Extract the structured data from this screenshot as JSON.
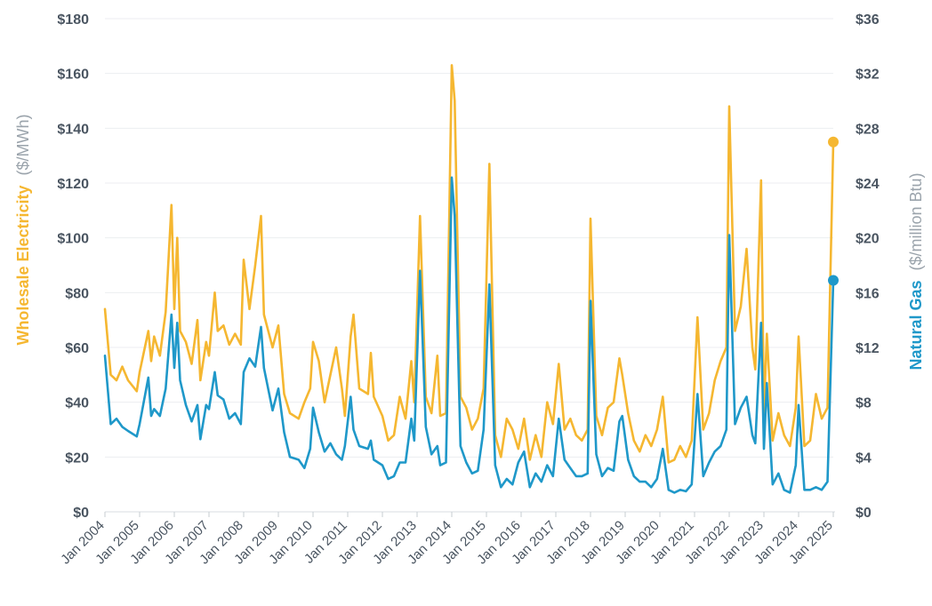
{
  "chart_data": {
    "type": "line",
    "title": "",
    "y_left": {
      "label_main": "Wholesale Electricity",
      "label_unit": "($/MWh)",
      "ylim": [
        0,
        180
      ],
      "ticks": [
        0,
        20,
        40,
        60,
        80,
        100,
        120,
        140,
        160,
        180
      ],
      "tick_labels": [
        "$0",
        "$20",
        "$40",
        "$60",
        "$80",
        "$100",
        "$120",
        "$140",
        "$160",
        "$180"
      ]
    },
    "y_right": {
      "label_main": "Natural Gas",
      "label_unit": "($/million Btu)",
      "ylim": [
        0,
        36
      ],
      "ticks": [
        0,
        4,
        8,
        12,
        16,
        20,
        24,
        28,
        32,
        36
      ],
      "tick_labels": [
        "$0",
        "$4",
        "$8",
        "$12",
        "$16",
        "$20",
        "$24",
        "$28",
        "$32",
        "$36"
      ]
    },
    "x_axis": {
      "tick_labels": [
        "Jan 2004",
        "Jan 2005",
        "Jan 2006",
        "Jan 2007",
        "Jan 2008",
        "Jan 2009",
        "Jan 2010",
        "Jan 2011",
        "Jan 2012",
        "Jan 2013",
        "Jan 2014",
        "Jan 2015",
        "Jan 2016",
        "Jan 2017",
        "Jan 2018",
        "Jan 2019",
        "Jan 2020",
        "Jan 2021",
        "Jan 2022",
        "Jan 2023",
        "Jan 2024",
        "Jan 2025"
      ]
    },
    "grid": true,
    "series": [
      {
        "axis": "left",
        "color": "#f5b731",
        "points": [
          [
            "2004-01",
            74
          ],
          [
            "2004-03",
            50
          ],
          [
            "2004-05",
            48
          ],
          [
            "2004-07",
            53
          ],
          [
            "2004-09",
            48
          ],
          [
            "2004-12",
            44
          ],
          [
            "2005-01",
            51
          ],
          [
            "2005-04",
            66
          ],
          [
            "2005-05",
            55
          ],
          [
            "2005-06",
            64
          ],
          [
            "2005-08",
            57
          ],
          [
            "2005-10",
            73
          ],
          [
            "2005-12",
            112
          ],
          [
            "2006-01",
            74
          ],
          [
            "2006-02",
            100
          ],
          [
            "2006-03",
            66
          ],
          [
            "2006-05",
            62
          ],
          [
            "2006-07",
            54
          ],
          [
            "2006-09",
            70
          ],
          [
            "2006-10",
            48
          ],
          [
            "2006-12",
            62
          ],
          [
            "2007-01",
            57
          ],
          [
            "2007-03",
            80
          ],
          [
            "2007-04",
            66
          ],
          [
            "2007-06",
            68
          ],
          [
            "2007-08",
            61
          ],
          [
            "2007-10",
            65
          ],
          [
            "2007-12",
            61
          ],
          [
            "2008-01",
            92
          ],
          [
            "2008-03",
            74
          ],
          [
            "2008-05",
            90
          ],
          [
            "2008-07",
            108
          ],
          [
            "2008-08",
            72
          ],
          [
            "2008-11",
            60
          ],
          [
            "2009-01",
            68
          ],
          [
            "2009-03",
            43
          ],
          [
            "2009-05",
            36
          ],
          [
            "2009-08",
            34
          ],
          [
            "2009-10",
            40
          ],
          [
            "2009-12",
            45
          ],
          [
            "2010-01",
            62
          ],
          [
            "2010-03",
            55
          ],
          [
            "2010-05",
            40
          ],
          [
            "2010-07",
            50
          ],
          [
            "2010-09",
            60
          ],
          [
            "2010-11",
            45
          ],
          [
            "2010-12",
            35
          ],
          [
            "2011-02",
            64
          ],
          [
            "2011-03",
            72
          ],
          [
            "2011-05",
            45
          ],
          [
            "2011-08",
            43
          ],
          [
            "2011-09",
            58
          ],
          [
            "2011-10",
            42
          ],
          [
            "2012-01",
            35
          ],
          [
            "2012-03",
            26
          ],
          [
            "2012-05",
            28
          ],
          [
            "2012-07",
            42
          ],
          [
            "2012-09",
            34
          ],
          [
            "2012-11",
            55
          ],
          [
            "2012-12",
            40
          ],
          [
            "2013-02",
            108
          ],
          [
            "2013-04",
            42
          ],
          [
            "2013-06",
            36
          ],
          [
            "2013-08",
            57
          ],
          [
            "2013-09",
            35
          ],
          [
            "2013-11",
            36
          ],
          [
            "2014-01",
            163
          ],
          [
            "2014-02",
            150
          ],
          [
            "2014-04",
            42
          ],
          [
            "2014-06",
            38
          ],
          [
            "2014-08",
            30
          ],
          [
            "2014-10",
            34
          ],
          [
            "2014-12",
            45
          ],
          [
            "2015-02",
            127
          ],
          [
            "2015-04",
            28
          ],
          [
            "2015-06",
            20
          ],
          [
            "2015-08",
            34
          ],
          [
            "2015-10",
            30
          ],
          [
            "2015-12",
            23
          ],
          [
            "2016-02",
            34
          ],
          [
            "2016-04",
            19
          ],
          [
            "2016-06",
            28
          ],
          [
            "2016-08",
            20
          ],
          [
            "2016-10",
            40
          ],
          [
            "2016-12",
            32
          ],
          [
            "2017-02",
            54
          ],
          [
            "2017-04",
            30
          ],
          [
            "2017-06",
            34
          ],
          [
            "2017-08",
            28
          ],
          [
            "2017-10",
            26
          ],
          [
            "2017-12",
            30
          ],
          [
            "2018-01",
            107
          ],
          [
            "2018-03",
            35
          ],
          [
            "2018-05",
            28
          ],
          [
            "2018-07",
            38
          ],
          [
            "2018-09",
            40
          ],
          [
            "2018-11",
            56
          ],
          [
            "2018-12",
            50
          ],
          [
            "2019-02",
            36
          ],
          [
            "2019-04",
            26
          ],
          [
            "2019-06",
            22
          ],
          [
            "2019-08",
            28
          ],
          [
            "2019-10",
            24
          ],
          [
            "2019-12",
            30
          ],
          [
            "2020-02",
            42
          ],
          [
            "2020-04",
            18
          ],
          [
            "2020-06",
            19
          ],
          [
            "2020-08",
            24
          ],
          [
            "2020-10",
            20
          ],
          [
            "2020-12",
            26
          ],
          [
            "2021-02",
            71
          ],
          [
            "2021-04",
            30
          ],
          [
            "2021-06",
            36
          ],
          [
            "2021-08",
            48
          ],
          [
            "2021-10",
            55
          ],
          [
            "2021-12",
            60
          ],
          [
            "2022-01",
            148
          ],
          [
            "2022-03",
            66
          ],
          [
            "2022-05",
            75
          ],
          [
            "2022-07",
            96
          ],
          [
            "2022-09",
            60
          ],
          [
            "2022-10",
            52
          ],
          [
            "2022-12",
            121
          ],
          [
            "2023-01",
            36
          ],
          [
            "2023-02",
            65
          ],
          [
            "2023-04",
            26
          ],
          [
            "2023-06",
            36
          ],
          [
            "2023-08",
            28
          ],
          [
            "2023-10",
            24
          ],
          [
            "2023-12",
            38
          ],
          [
            "2024-01",
            64
          ],
          [
            "2024-03",
            24
          ],
          [
            "2024-05",
            26
          ],
          [
            "2024-07",
            43
          ],
          [
            "2024-09",
            34
          ],
          [
            "2024-11",
            38
          ],
          [
            "2025-01",
            135
          ]
        ]
      },
      {
        "axis": "right",
        "color": "#1f98c9",
        "points": [
          [
            "2004-01",
            11.4
          ],
          [
            "2004-03",
            6.4
          ],
          [
            "2004-05",
            6.8
          ],
          [
            "2004-07",
            6.2
          ],
          [
            "2004-09",
            5.9
          ],
          [
            "2004-12",
            5.5
          ],
          [
            "2005-01",
            6.4
          ],
          [
            "2005-04",
            9.8
          ],
          [
            "2005-05",
            7.0
          ],
          [
            "2005-06",
            7.5
          ],
          [
            "2005-08",
            7.0
          ],
          [
            "2005-10",
            9.0
          ],
          [
            "2005-12",
            14.4
          ],
          [
            "2006-01",
            10.5
          ],
          [
            "2006-02",
            13.8
          ],
          [
            "2006-03",
            9.6
          ],
          [
            "2006-05",
            7.8
          ],
          [
            "2006-07",
            6.6
          ],
          [
            "2006-09",
            7.8
          ],
          [
            "2006-10",
            5.3
          ],
          [
            "2006-12",
            7.8
          ],
          [
            "2007-01",
            7.5
          ],
          [
            "2007-03",
            10.2
          ],
          [
            "2007-04",
            8.5
          ],
          [
            "2007-06",
            8.2
          ],
          [
            "2007-08",
            6.8
          ],
          [
            "2007-10",
            7.2
          ],
          [
            "2007-12",
            6.4
          ],
          [
            "2008-01",
            10.2
          ],
          [
            "2008-03",
            11.2
          ],
          [
            "2008-05",
            10.6
          ],
          [
            "2008-07",
            13.5
          ],
          [
            "2008-08",
            10.5
          ],
          [
            "2008-11",
            7.4
          ],
          [
            "2009-01",
            9.0
          ],
          [
            "2009-03",
            5.8
          ],
          [
            "2009-05",
            4.0
          ],
          [
            "2009-08",
            3.8
          ],
          [
            "2009-10",
            3.2
          ],
          [
            "2009-12",
            4.6
          ],
          [
            "2010-01",
            7.6
          ],
          [
            "2010-03",
            5.8
          ],
          [
            "2010-05",
            4.4
          ],
          [
            "2010-07",
            5.0
          ],
          [
            "2010-09",
            4.2
          ],
          [
            "2010-11",
            3.8
          ],
          [
            "2010-12",
            4.8
          ],
          [
            "2011-02",
            8.4
          ],
          [
            "2011-03",
            6.0
          ],
          [
            "2011-05",
            4.8
          ],
          [
            "2011-08",
            4.6
          ],
          [
            "2011-09",
            5.2
          ],
          [
            "2011-10",
            3.8
          ],
          [
            "2012-01",
            3.4
          ],
          [
            "2012-03",
            2.4
          ],
          [
            "2012-05",
            2.6
          ],
          [
            "2012-07",
            3.6
          ],
          [
            "2012-09",
            3.6
          ],
          [
            "2012-11",
            6.8
          ],
          [
            "2012-12",
            5.2
          ],
          [
            "2013-02",
            17.6
          ],
          [
            "2013-04",
            6.2
          ],
          [
            "2013-06",
            4.2
          ],
          [
            "2013-08",
            4.8
          ],
          [
            "2013-09",
            3.4
          ],
          [
            "2013-11",
            3.6
          ],
          [
            "2014-01",
            24.4
          ],
          [
            "2014-02",
            21.6
          ],
          [
            "2014-04",
            4.8
          ],
          [
            "2014-06",
            3.6
          ],
          [
            "2014-08",
            2.8
          ],
          [
            "2014-10",
            3.0
          ],
          [
            "2014-12",
            6.0
          ],
          [
            "2015-02",
            16.6
          ],
          [
            "2015-04",
            3.4
          ],
          [
            "2015-06",
            1.8
          ],
          [
            "2015-08",
            2.4
          ],
          [
            "2015-10",
            2.0
          ],
          [
            "2015-12",
            3.6
          ],
          [
            "2016-02",
            4.4
          ],
          [
            "2016-04",
            1.8
          ],
          [
            "2016-06",
            2.8
          ],
          [
            "2016-08",
            2.2
          ],
          [
            "2016-10",
            3.4
          ],
          [
            "2016-12",
            2.6
          ],
          [
            "2017-02",
            6.8
          ],
          [
            "2017-04",
            3.8
          ],
          [
            "2017-06",
            3.2
          ],
          [
            "2017-08",
            2.6
          ],
          [
            "2017-10",
            2.6
          ],
          [
            "2017-12",
            2.8
          ],
          [
            "2018-01",
            15.4
          ],
          [
            "2018-03",
            4.2
          ],
          [
            "2018-05",
            2.6
          ],
          [
            "2018-07",
            3.2
          ],
          [
            "2018-09",
            3.0
          ],
          [
            "2018-11",
            6.6
          ],
          [
            "2018-12",
            7.0
          ],
          [
            "2019-02",
            3.8
          ],
          [
            "2019-04",
            2.6
          ],
          [
            "2019-06",
            2.2
          ],
          [
            "2019-08",
            2.2
          ],
          [
            "2019-10",
            1.8
          ],
          [
            "2019-12",
            2.4
          ],
          [
            "2020-02",
            4.6
          ],
          [
            "2020-04",
            1.6
          ],
          [
            "2020-06",
            1.4
          ],
          [
            "2020-08",
            1.6
          ],
          [
            "2020-10",
            1.5
          ],
          [
            "2020-12",
            2.0
          ],
          [
            "2021-02",
            8.6
          ],
          [
            "2021-04",
            2.6
          ],
          [
            "2021-06",
            3.6
          ],
          [
            "2021-08",
            4.4
          ],
          [
            "2021-10",
            4.8
          ],
          [
            "2021-12",
            6.0
          ],
          [
            "2022-01",
            20.2
          ],
          [
            "2022-03",
            6.4
          ],
          [
            "2022-05",
            7.6
          ],
          [
            "2022-07",
            8.4
          ],
          [
            "2022-09",
            5.6
          ],
          [
            "2022-10",
            5.0
          ],
          [
            "2022-12",
            13.8
          ],
          [
            "2023-01",
            4.6
          ],
          [
            "2023-02",
            9.4
          ],
          [
            "2023-04",
            2.0
          ],
          [
            "2023-06",
            2.8
          ],
          [
            "2023-08",
            1.6
          ],
          [
            "2023-10",
            1.4
          ],
          [
            "2023-12",
            3.4
          ],
          [
            "2024-01",
            7.8
          ],
          [
            "2024-03",
            1.6
          ],
          [
            "2024-05",
            1.6
          ],
          [
            "2024-07",
            1.8
          ],
          [
            "2024-09",
            1.6
          ],
          [
            "2024-11",
            2.2
          ],
          [
            "2025-01",
            16.9
          ]
        ]
      }
    ]
  }
}
